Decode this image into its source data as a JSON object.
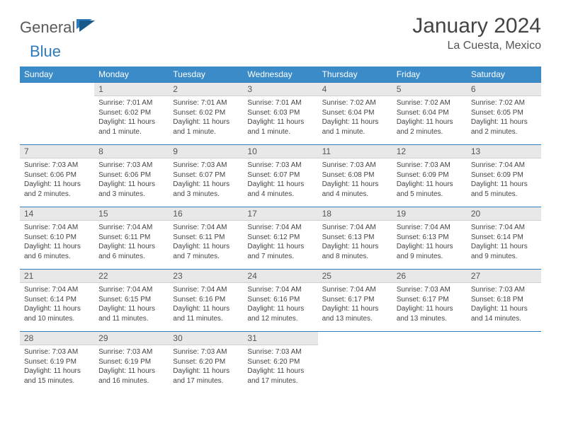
{
  "logo": {
    "part1": "General",
    "part2": "Blue"
  },
  "title": "January 2024",
  "location": "La Cuesta, Mexico",
  "weekdays": [
    "Sunday",
    "Monday",
    "Tuesday",
    "Wednesday",
    "Thursday",
    "Friday",
    "Saturday"
  ],
  "colors": {
    "header_bg": "#3b8bc8",
    "header_text": "#ffffff",
    "accent": "#2d7bbd",
    "daynum_bg": "#e8e8e8",
    "text": "#444444"
  },
  "start_weekday": 1,
  "labels": {
    "sunrise": "Sunrise:",
    "sunset": "Sunset:",
    "daylight": "Daylight:"
  },
  "days": [
    {
      "n": 1,
      "sr": "7:01 AM",
      "ss": "6:02 PM",
      "dl": "11 hours and 1 minute."
    },
    {
      "n": 2,
      "sr": "7:01 AM",
      "ss": "6:02 PM",
      "dl": "11 hours and 1 minute."
    },
    {
      "n": 3,
      "sr": "7:01 AM",
      "ss": "6:03 PM",
      "dl": "11 hours and 1 minute."
    },
    {
      "n": 4,
      "sr": "7:02 AM",
      "ss": "6:04 PM",
      "dl": "11 hours and 1 minute."
    },
    {
      "n": 5,
      "sr": "7:02 AM",
      "ss": "6:04 PM",
      "dl": "11 hours and 2 minutes."
    },
    {
      "n": 6,
      "sr": "7:02 AM",
      "ss": "6:05 PM",
      "dl": "11 hours and 2 minutes."
    },
    {
      "n": 7,
      "sr": "7:03 AM",
      "ss": "6:06 PM",
      "dl": "11 hours and 2 minutes."
    },
    {
      "n": 8,
      "sr": "7:03 AM",
      "ss": "6:06 PM",
      "dl": "11 hours and 3 minutes."
    },
    {
      "n": 9,
      "sr": "7:03 AM",
      "ss": "6:07 PM",
      "dl": "11 hours and 3 minutes."
    },
    {
      "n": 10,
      "sr": "7:03 AM",
      "ss": "6:07 PM",
      "dl": "11 hours and 4 minutes."
    },
    {
      "n": 11,
      "sr": "7:03 AM",
      "ss": "6:08 PM",
      "dl": "11 hours and 4 minutes."
    },
    {
      "n": 12,
      "sr": "7:03 AM",
      "ss": "6:09 PM",
      "dl": "11 hours and 5 minutes."
    },
    {
      "n": 13,
      "sr": "7:04 AM",
      "ss": "6:09 PM",
      "dl": "11 hours and 5 minutes."
    },
    {
      "n": 14,
      "sr": "7:04 AM",
      "ss": "6:10 PM",
      "dl": "11 hours and 6 minutes."
    },
    {
      "n": 15,
      "sr": "7:04 AM",
      "ss": "6:11 PM",
      "dl": "11 hours and 6 minutes."
    },
    {
      "n": 16,
      "sr": "7:04 AM",
      "ss": "6:11 PM",
      "dl": "11 hours and 7 minutes."
    },
    {
      "n": 17,
      "sr": "7:04 AM",
      "ss": "6:12 PM",
      "dl": "11 hours and 7 minutes."
    },
    {
      "n": 18,
      "sr": "7:04 AM",
      "ss": "6:13 PM",
      "dl": "11 hours and 8 minutes."
    },
    {
      "n": 19,
      "sr": "7:04 AM",
      "ss": "6:13 PM",
      "dl": "11 hours and 9 minutes."
    },
    {
      "n": 20,
      "sr": "7:04 AM",
      "ss": "6:14 PM",
      "dl": "11 hours and 9 minutes."
    },
    {
      "n": 21,
      "sr": "7:04 AM",
      "ss": "6:14 PM",
      "dl": "11 hours and 10 minutes."
    },
    {
      "n": 22,
      "sr": "7:04 AM",
      "ss": "6:15 PM",
      "dl": "11 hours and 11 minutes."
    },
    {
      "n": 23,
      "sr": "7:04 AM",
      "ss": "6:16 PM",
      "dl": "11 hours and 11 minutes."
    },
    {
      "n": 24,
      "sr": "7:04 AM",
      "ss": "6:16 PM",
      "dl": "11 hours and 12 minutes."
    },
    {
      "n": 25,
      "sr": "7:04 AM",
      "ss": "6:17 PM",
      "dl": "11 hours and 13 minutes."
    },
    {
      "n": 26,
      "sr": "7:03 AM",
      "ss": "6:17 PM",
      "dl": "11 hours and 13 minutes."
    },
    {
      "n": 27,
      "sr": "7:03 AM",
      "ss": "6:18 PM",
      "dl": "11 hours and 14 minutes."
    },
    {
      "n": 28,
      "sr": "7:03 AM",
      "ss": "6:19 PM",
      "dl": "11 hours and 15 minutes."
    },
    {
      "n": 29,
      "sr": "7:03 AM",
      "ss": "6:19 PM",
      "dl": "11 hours and 16 minutes."
    },
    {
      "n": 30,
      "sr": "7:03 AM",
      "ss": "6:20 PM",
      "dl": "11 hours and 17 minutes."
    },
    {
      "n": 31,
      "sr": "7:03 AM",
      "ss": "6:20 PM",
      "dl": "11 hours and 17 minutes."
    }
  ]
}
